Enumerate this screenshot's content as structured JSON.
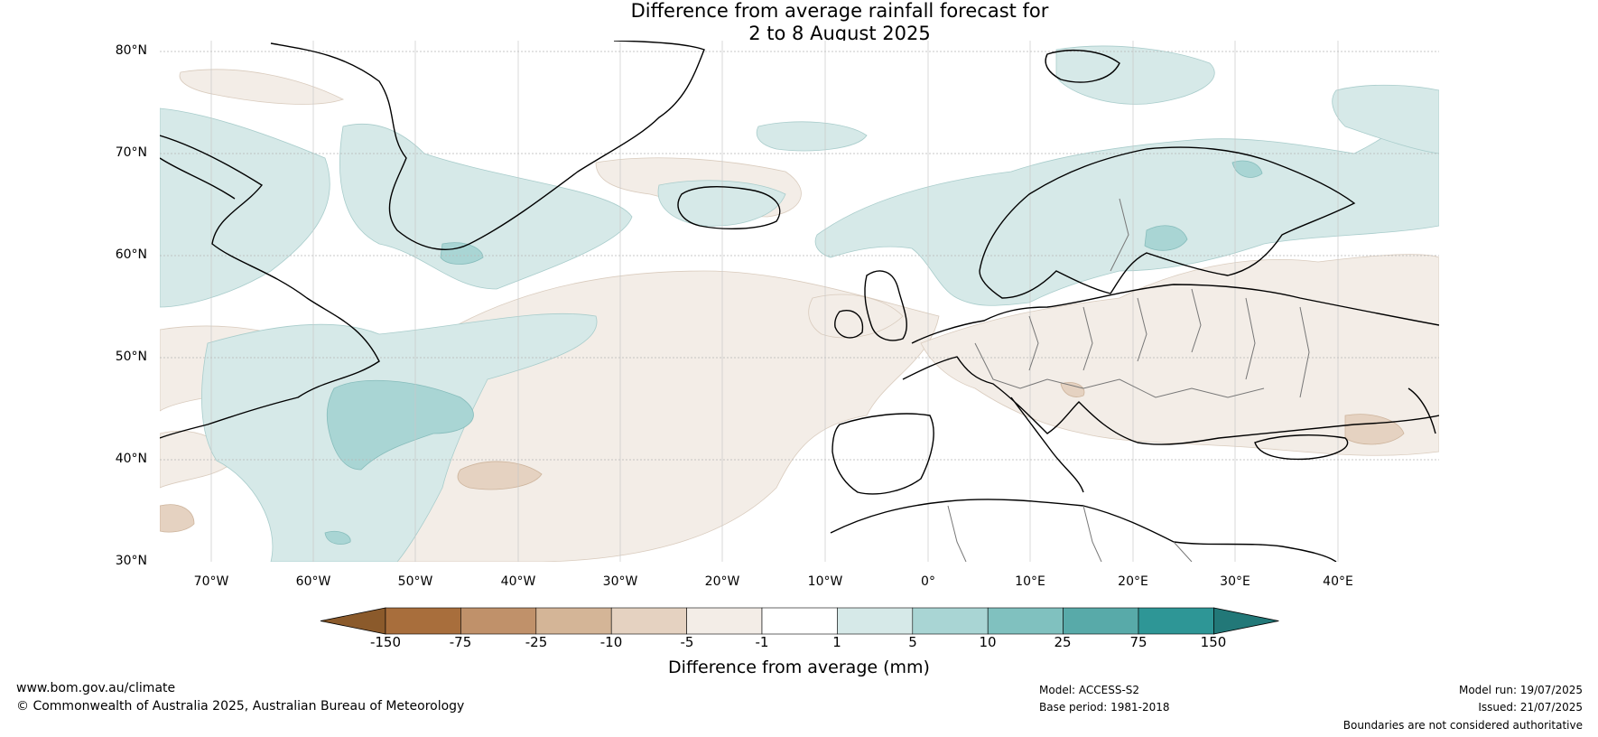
{
  "title": {
    "line1": "Difference from average rainfall forecast for",
    "line2": "2 to 8 August 2025"
  },
  "map": {
    "lat_labels": [
      "80°N",
      "70°N",
      "60°N",
      "50°N",
      "40°N",
      "30°N"
    ],
    "lon_labels": [
      "70°W",
      "60°W",
      "50°W",
      "40°W",
      "30°W",
      "20°W",
      "10°W",
      "0°",
      "10°E",
      "20°E",
      "30°E",
      "40°E"
    ],
    "region": "North Atlantic and Europe"
  },
  "colorbar": {
    "ticks": [
      "-150",
      "-75",
      "-25",
      "-10",
      "-5",
      "-1",
      "1",
      "5",
      "10",
      "25",
      "75",
      "150"
    ],
    "colors": [
      "#8b5a2b",
      "#a86e3c",
      "#c0916a",
      "#d4b597",
      "#e5d2c1",
      "#f3ede7",
      "#ffffff",
      "#d6e9e8",
      "#a9d5d4",
      "#80c1bf",
      "#58aaa9",
      "#2e9696",
      "#227878"
    ],
    "title": "Difference from average (mm)"
  },
  "footer": {
    "url": "www.bom.gov.au/climate",
    "copyright": "© Commonwealth of Australia 2025, Australian Bureau of Meteorology",
    "model": "Model: ACCESS-S2",
    "base_period": "Base period: 1981-2018",
    "model_run": "Model run: 19/07/2025",
    "issued": "Issued: 21/07/2025",
    "disclaimer": "Boundaries are not considered authoritative"
  }
}
